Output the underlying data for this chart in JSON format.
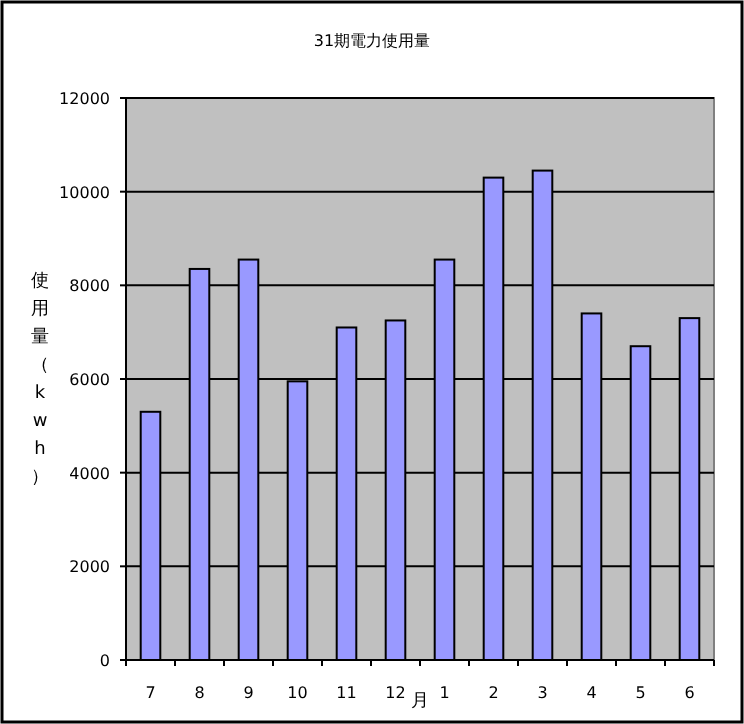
{
  "chart_data": {
    "type": "bar",
    "title": "31期電力使用量",
    "xlabel": "月",
    "ylabel": "使用量（kwh）",
    "categories": [
      "7",
      "8",
      "9",
      "10",
      "11",
      "12",
      "1",
      "2",
      "3",
      "4",
      "5",
      "6"
    ],
    "values": [
      5300,
      8350,
      8550,
      5950,
      7100,
      7250,
      8550,
      10300,
      10450,
      7400,
      6700,
      7300
    ],
    "color": "#9999ff",
    "ylim": [
      0,
      12000
    ],
    "yticks": [
      0,
      2000,
      4000,
      6000,
      8000,
      10000,
      12000
    ],
    "grid": "y"
  }
}
